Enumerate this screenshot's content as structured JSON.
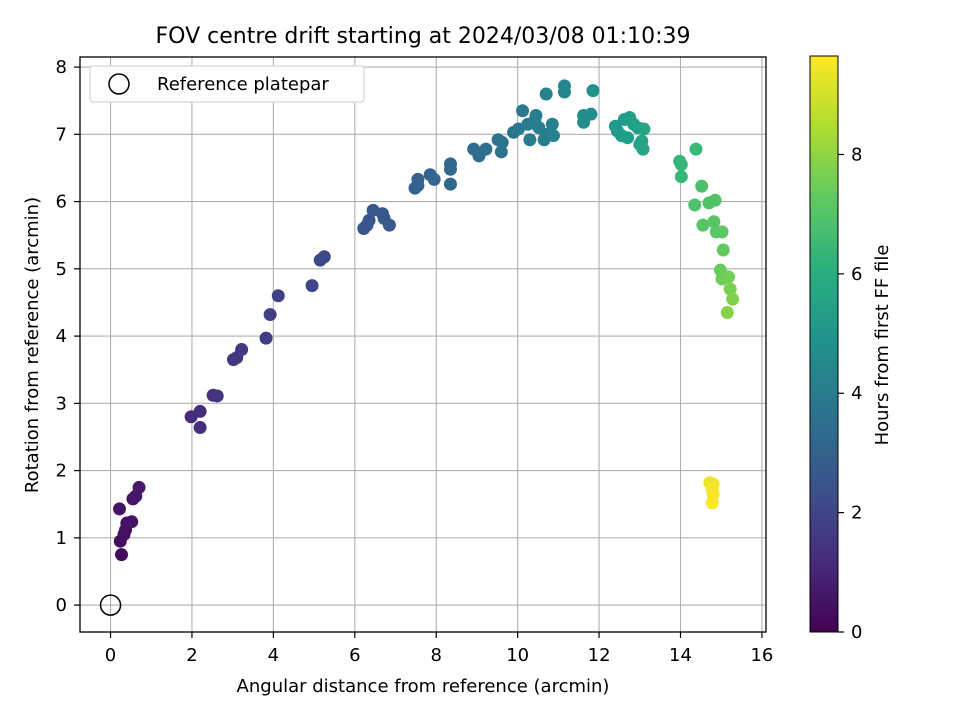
{
  "chart_data": {
    "type": "scatter",
    "title": "FOV centre drift starting at 2024/03/08 01:10:39",
    "xlabel": "Angular distance from reference (arcmin)",
    "ylabel": "Rotation from reference (arcmin)",
    "xlim": [
      -0.75,
      16.1
    ],
    "ylim": [
      -0.4,
      8.15
    ],
    "xticks": [
      "0",
      "2",
      "4",
      "6",
      "8",
      "10",
      "12",
      "14",
      "16"
    ],
    "yticks": [
      "0",
      "1",
      "2",
      "3",
      "4",
      "5",
      "6",
      "7",
      "8"
    ],
    "grid": true,
    "legend": {
      "placement": "upper-left",
      "entries": [
        "Reference platepar"
      ]
    },
    "reference_point": {
      "x": 0,
      "y": 0,
      "label": "Reference platepar"
    },
    "colorbar": {
      "label": "Hours from first FF file",
      "colormap": "viridis",
      "range": [
        0,
        9.65
      ],
      "ticks": [
        "0",
        "2",
        "4",
        "6",
        "8"
      ]
    },
    "points": [
      {
        "x": 0.27,
        "y": 0.75,
        "c": 0.3
      },
      {
        "x": 0.24,
        "y": 0.95,
        "c": 0.35
      },
      {
        "x": 0.33,
        "y": 1.05,
        "c": 0.4
      },
      {
        "x": 0.37,
        "y": 1.12,
        "c": 0.42
      },
      {
        "x": 0.4,
        "y": 1.22,
        "c": 0.45
      },
      {
        "x": 0.52,
        "y": 1.24,
        "c": 0.48
      },
      {
        "x": 0.22,
        "y": 1.43,
        "c": 0.5
      },
      {
        "x": 0.55,
        "y": 1.58,
        "c": 0.55
      },
      {
        "x": 0.62,
        "y": 1.62,
        "c": 0.58
      },
      {
        "x": 0.7,
        "y": 1.75,
        "c": 0.62
      },
      {
        "x": 1.98,
        "y": 2.8,
        "c": 1.25
      },
      {
        "x": 2.2,
        "y": 2.88,
        "c": 1.28
      },
      {
        "x": 2.2,
        "y": 2.64,
        "c": 1.3
      },
      {
        "x": 2.52,
        "y": 3.12,
        "c": 1.4
      },
      {
        "x": 2.62,
        "y": 3.11,
        "c": 1.42
      },
      {
        "x": 3.02,
        "y": 3.65,
        "c": 1.55
      },
      {
        "x": 3.1,
        "y": 3.68,
        "c": 1.58
      },
      {
        "x": 3.22,
        "y": 3.8,
        "c": 1.62
      },
      {
        "x": 3.82,
        "y": 3.97,
        "c": 1.75
      },
      {
        "x": 3.92,
        "y": 4.32,
        "c": 1.8
      },
      {
        "x": 4.12,
        "y": 4.6,
        "c": 1.85
      },
      {
        "x": 4.95,
        "y": 4.75,
        "c": 2.05
      },
      {
        "x": 5.15,
        "y": 5.13,
        "c": 2.1
      },
      {
        "x": 5.25,
        "y": 5.18,
        "c": 2.12
      },
      {
        "x": 6.22,
        "y": 5.6,
        "c": 2.55
      },
      {
        "x": 6.3,
        "y": 5.65,
        "c": 2.58
      },
      {
        "x": 6.35,
        "y": 5.72,
        "c": 2.6
      },
      {
        "x": 6.45,
        "y": 5.87,
        "c": 2.62
      },
      {
        "x": 6.68,
        "y": 5.82,
        "c": 2.65
      },
      {
        "x": 6.72,
        "y": 5.75,
        "c": 2.68
      },
      {
        "x": 6.85,
        "y": 5.65,
        "c": 2.7
      },
      {
        "x": 7.48,
        "y": 6.2,
        "c": 3.0
      },
      {
        "x": 7.55,
        "y": 6.33,
        "c": 3.02
      },
      {
        "x": 7.55,
        "y": 6.24,
        "c": 3.05
      },
      {
        "x": 7.85,
        "y": 6.4,
        "c": 3.1
      },
      {
        "x": 7.95,
        "y": 6.33,
        "c": 3.15
      },
      {
        "x": 8.35,
        "y": 6.56,
        "c": 3.2
      },
      {
        "x": 8.35,
        "y": 6.48,
        "c": 3.22
      },
      {
        "x": 8.35,
        "y": 6.26,
        "c": 3.25
      },
      {
        "x": 8.92,
        "y": 6.78,
        "c": 3.45
      },
      {
        "x": 9.05,
        "y": 6.68,
        "c": 3.5
      },
      {
        "x": 9.22,
        "y": 6.78,
        "c": 3.55
      },
      {
        "x": 9.52,
        "y": 6.92,
        "c": 3.65
      },
      {
        "x": 9.62,
        "y": 6.88,
        "c": 3.7
      },
      {
        "x": 9.6,
        "y": 6.74,
        "c": 3.72
      },
      {
        "x": 9.9,
        "y": 7.03,
        "c": 3.8
      },
      {
        "x": 10.02,
        "y": 7.08,
        "c": 3.85
      },
      {
        "x": 10.12,
        "y": 7.35,
        "c": 3.9
      },
      {
        "x": 10.25,
        "y": 7.15,
        "c": 3.95
      },
      {
        "x": 10.3,
        "y": 6.92,
        "c": 4.0
      },
      {
        "x": 10.42,
        "y": 7.2,
        "c": 4.05
      },
      {
        "x": 10.45,
        "y": 7.28,
        "c": 4.08
      },
      {
        "x": 10.52,
        "y": 7.1,
        "c": 4.1
      },
      {
        "x": 10.65,
        "y": 6.92,
        "c": 4.15
      },
      {
        "x": 10.7,
        "y": 7.0,
        "c": 4.18
      },
      {
        "x": 10.7,
        "y": 7.6,
        "c": 4.2
      },
      {
        "x": 10.85,
        "y": 7.15,
        "c": 4.25
      },
      {
        "x": 10.88,
        "y": 6.98,
        "c": 4.28
      },
      {
        "x": 11.15,
        "y": 7.72,
        "c": 4.45
      },
      {
        "x": 11.15,
        "y": 7.63,
        "c": 4.48
      },
      {
        "x": 11.62,
        "y": 7.28,
        "c": 4.7
      },
      {
        "x": 11.62,
        "y": 7.18,
        "c": 4.72
      },
      {
        "x": 11.8,
        "y": 7.3,
        "c": 4.8
      },
      {
        "x": 11.85,
        "y": 7.65,
        "c": 4.85
      },
      {
        "x": 12.4,
        "y": 7.12,
        "c": 5.2
      },
      {
        "x": 12.45,
        "y": 7.05,
        "c": 5.25
      },
      {
        "x": 12.55,
        "y": 6.98,
        "c": 5.3
      },
      {
        "x": 12.62,
        "y": 7.22,
        "c": 5.35
      },
      {
        "x": 12.7,
        "y": 6.95,
        "c": 5.4
      },
      {
        "x": 12.75,
        "y": 7.25,
        "c": 5.45
      },
      {
        "x": 12.85,
        "y": 7.15,
        "c": 5.5
      },
      {
        "x": 12.95,
        "y": 7.1,
        "c": 5.55
      },
      {
        "x": 13.05,
        "y": 6.9,
        "c": 5.6
      },
      {
        "x": 13.0,
        "y": 6.85,
        "c": 5.62
      },
      {
        "x": 13.08,
        "y": 6.78,
        "c": 5.65
      },
      {
        "x": 13.1,
        "y": 7.08,
        "c": 5.68
      },
      {
        "x": 13.98,
        "y": 6.6,
        "c": 6.4
      },
      {
        "x": 14.02,
        "y": 6.55,
        "c": 6.45
      },
      {
        "x": 14.02,
        "y": 6.37,
        "c": 6.5
      },
      {
        "x": 14.38,
        "y": 6.78,
        "c": 6.55
      },
      {
        "x": 14.52,
        "y": 6.23,
        "c": 6.85
      },
      {
        "x": 14.35,
        "y": 5.95,
        "c": 6.9
      },
      {
        "x": 14.7,
        "y": 5.98,
        "c": 6.95
      },
      {
        "x": 14.85,
        "y": 6.02,
        "c": 7.0
      },
      {
        "x": 14.55,
        "y": 5.65,
        "c": 7.05
      },
      {
        "x": 14.82,
        "y": 5.7,
        "c": 7.1
      },
      {
        "x": 14.88,
        "y": 5.55,
        "c": 7.15
      },
      {
        "x": 15.02,
        "y": 5.55,
        "c": 7.2
      },
      {
        "x": 15.05,
        "y": 5.28,
        "c": 7.3
      },
      {
        "x": 14.98,
        "y": 4.98,
        "c": 7.4
      },
      {
        "x": 15.02,
        "y": 4.85,
        "c": 7.5
      },
      {
        "x": 15.18,
        "y": 4.88,
        "c": 7.6
      },
      {
        "x": 15.22,
        "y": 4.7,
        "c": 7.7
      },
      {
        "x": 15.28,
        "y": 4.55,
        "c": 7.8
      },
      {
        "x": 15.15,
        "y": 4.35,
        "c": 7.9
      },
      {
        "x": 14.72,
        "y": 1.82,
        "c": 9.4
      },
      {
        "x": 14.8,
        "y": 1.8,
        "c": 9.45
      },
      {
        "x": 14.78,
        "y": 1.72,
        "c": 9.5
      },
      {
        "x": 14.8,
        "y": 1.65,
        "c": 9.55
      },
      {
        "x": 14.78,
        "y": 1.52,
        "c": 9.6
      }
    ]
  }
}
